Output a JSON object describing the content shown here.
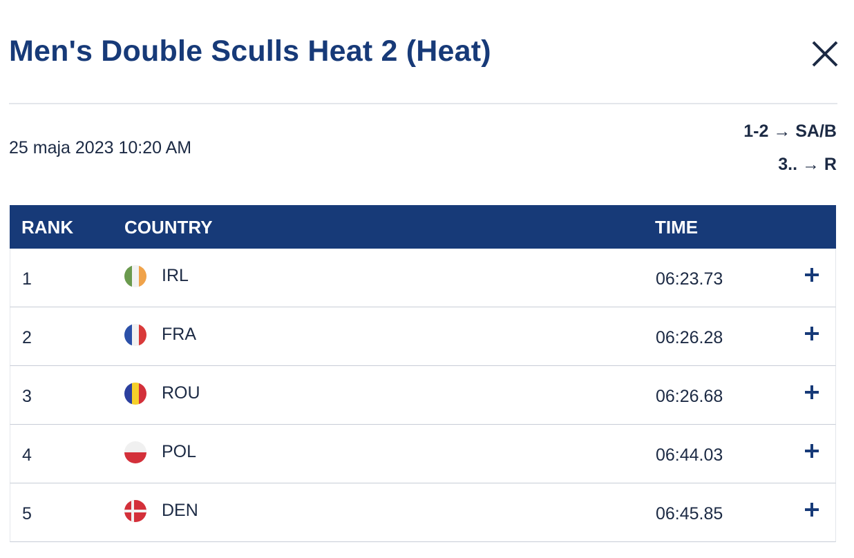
{
  "header": {
    "title": "Men's Double Sculls Heat 2 (Heat)"
  },
  "info": {
    "date": "25 maja 2023 10:20 AM",
    "progression": [
      "1-2 → SA/B",
      "3.. → R"
    ]
  },
  "table": {
    "columns": [
      "RANK",
      "COUNTRY",
      "TIME"
    ],
    "rows": [
      [
        1,
        "IRL",
        "06:23.73"
      ],
      [
        2,
        "FRA",
        "06:26.28"
      ],
      [
        3,
        "ROU",
        "06:26.68"
      ],
      [
        4,
        "POL",
        "06:44.03"
      ],
      [
        5,
        "DEN",
        "06:45.85"
      ]
    ]
  }
}
